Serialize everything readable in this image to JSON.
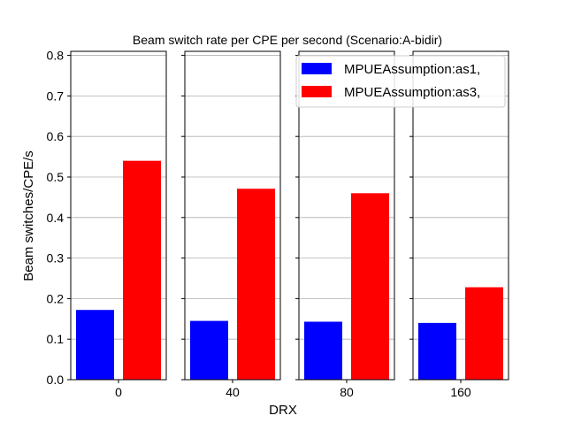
{
  "chart_data": {
    "type": "bar",
    "title": "Beam switch rate per CPE per second (Scenario:A-bidir)",
    "xlabel": "DRX",
    "ylabel": "Beam switches/CPE/s",
    "categories": [
      "0",
      "40",
      "80",
      "160"
    ],
    "series": [
      {
        "name": "MPUEAssumption:as1,",
        "color": "#0000ff",
        "values": [
          0.172,
          0.145,
          0.143,
          0.14
        ]
      },
      {
        "name": "MPUEAssumption:as3,",
        "color": "#ff0000",
        "values": [
          0.54,
          0.471,
          0.46,
          0.228
        ]
      }
    ],
    "ylim": [
      0,
      0.81
    ],
    "yticks": [
      "0.0",
      "0.1",
      "0.2",
      "0.3",
      "0.4",
      "0.5",
      "0.6",
      "0.7",
      "0.8"
    ],
    "grid": "horizontal",
    "legend_position": "top-right"
  }
}
